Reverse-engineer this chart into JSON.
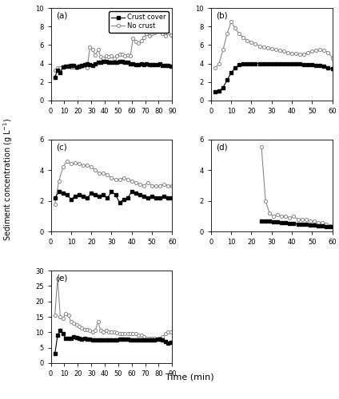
{
  "panel_a": {
    "label": "(a)",
    "xlim": [
      0,
      90
    ],
    "ylim": [
      0,
      10
    ],
    "xticks": [
      0,
      10,
      20,
      30,
      40,
      50,
      60,
      70,
      80,
      90
    ],
    "yticks": [
      0,
      2,
      4,
      6,
      8,
      10
    ],
    "crust_x": [
      3,
      5,
      7,
      9,
      11,
      13,
      15,
      17,
      19,
      21,
      23,
      25,
      27,
      29,
      31,
      33,
      35,
      37,
      39,
      41,
      43,
      45,
      47,
      49,
      51,
      53,
      55,
      57,
      59,
      61,
      63,
      65,
      67,
      69,
      71,
      73,
      75,
      77,
      79,
      81,
      83,
      85,
      87,
      89
    ],
    "crust_y": [
      2.5,
      3.3,
      3.0,
      3.6,
      3.7,
      3.7,
      3.8,
      3.8,
      3.6,
      3.7,
      3.8,
      3.9,
      4.0,
      3.9,
      3.8,
      4.0,
      4.1,
      4.1,
      4.2,
      4.2,
      4.1,
      4.1,
      4.1,
      4.1,
      4.2,
      4.2,
      4.1,
      4.1,
      4.0,
      4.0,
      3.9,
      3.9,
      4.0,
      3.9,
      4.0,
      3.9,
      3.9,
      3.9,
      3.9,
      4.0,
      3.8,
      3.8,
      3.8,
      3.7
    ],
    "nocrust_x": [
      3,
      5,
      7,
      9,
      11,
      13,
      15,
      17,
      19,
      21,
      23,
      25,
      27,
      29,
      31,
      33,
      35,
      37,
      39,
      41,
      43,
      45,
      47,
      49,
      51,
      53,
      55,
      57,
      59,
      61,
      63,
      65,
      67,
      69,
      71,
      73,
      75,
      77,
      79,
      81,
      83,
      85,
      87,
      89
    ],
    "nocrust_y": [
      3.3,
      3.5,
      3.5,
      3.6,
      3.7,
      3.8,
      3.6,
      3.6,
      3.5,
      3.6,
      3.7,
      3.8,
      3.5,
      5.8,
      5.5,
      4.9,
      5.5,
      4.7,
      4.6,
      4.8,
      4.7,
      4.8,
      4.6,
      4.8,
      5.0,
      5.0,
      4.8,
      4.9,
      4.8,
      6.7,
      6.4,
      6.2,
      6.5,
      6.8,
      7.2,
      7.0,
      7.2,
      7.3,
      7.5,
      7.5,
      7.2,
      7.0,
      7.3,
      7.1
    ]
  },
  "panel_b": {
    "label": "(b)",
    "xlim": [
      0,
      60
    ],
    "ylim": [
      0,
      10
    ],
    "xticks": [
      0,
      10,
      20,
      30,
      40,
      50,
      60
    ],
    "yticks": [
      0,
      2,
      4,
      6,
      8,
      10
    ],
    "crust_x": [
      2,
      4,
      6,
      8,
      10,
      12,
      14,
      16,
      18,
      20,
      22,
      24,
      26,
      28,
      30,
      32,
      34,
      36,
      38,
      40,
      42,
      44,
      46,
      48,
      50,
      52,
      54,
      56,
      58,
      60
    ],
    "crust_y": [
      0.9,
      1.0,
      1.4,
      2.2,
      3.0,
      3.5,
      3.9,
      4.0,
      4.0,
      4.0,
      4.0,
      4.0,
      4.0,
      4.0,
      4.0,
      4.0,
      4.0,
      4.0,
      4.0,
      4.0,
      4.0,
      4.0,
      3.9,
      3.9,
      3.9,
      3.8,
      3.8,
      3.7,
      3.5,
      3.4
    ],
    "nocrust_x": [
      2,
      4,
      6,
      8,
      10,
      12,
      14,
      16,
      18,
      20,
      22,
      24,
      26,
      28,
      30,
      32,
      34,
      36,
      38,
      40,
      42,
      44,
      46,
      48,
      50,
      52,
      54,
      56,
      58,
      60
    ],
    "nocrust_y": [
      3.5,
      4.0,
      5.5,
      7.2,
      8.5,
      7.8,
      7.2,
      6.8,
      6.5,
      6.3,
      6.1,
      5.9,
      5.8,
      5.7,
      5.6,
      5.5,
      5.4,
      5.3,
      5.2,
      5.1,
      5.1,
      5.0,
      5.0,
      5.2,
      5.3,
      5.4,
      5.5,
      5.4,
      5.2,
      4.6
    ]
  },
  "panel_c": {
    "label": "(c)",
    "xlim": [
      0,
      60
    ],
    "ylim": [
      0,
      6
    ],
    "xticks": [
      0,
      10,
      20,
      30,
      40,
      50,
      60
    ],
    "yticks": [
      0,
      2,
      4,
      6
    ],
    "crust_x": [
      2,
      4,
      6,
      8,
      10,
      12,
      14,
      16,
      18,
      20,
      22,
      24,
      26,
      28,
      30,
      32,
      34,
      36,
      38,
      40,
      42,
      44,
      46,
      48,
      50,
      52,
      54,
      56,
      58,
      60
    ],
    "crust_y": [
      2.2,
      2.6,
      2.5,
      2.4,
      2.1,
      2.3,
      2.4,
      2.3,
      2.2,
      2.5,
      2.4,
      2.3,
      2.4,
      2.2,
      2.6,
      2.4,
      1.9,
      2.1,
      2.2,
      2.6,
      2.5,
      2.4,
      2.3,
      2.2,
      2.3,
      2.2,
      2.2,
      2.3,
      2.2,
      2.2
    ],
    "nocrust_x": [
      2,
      4,
      6,
      8,
      10,
      12,
      14,
      16,
      18,
      20,
      22,
      24,
      26,
      28,
      30,
      32,
      34,
      36,
      38,
      40,
      42,
      44,
      46,
      48,
      50,
      52,
      54,
      56,
      58,
      60
    ],
    "nocrust_y": [
      1.8,
      3.3,
      4.2,
      4.6,
      4.4,
      4.5,
      4.4,
      4.3,
      4.3,
      4.2,
      4.0,
      3.8,
      3.8,
      3.7,
      3.5,
      3.4,
      3.4,
      3.5,
      3.4,
      3.3,
      3.2,
      3.1,
      3.0,
      3.2,
      3.0,
      3.0,
      3.0,
      3.1,
      3.0,
      3.0
    ]
  },
  "panel_d": {
    "label": "(d)",
    "xlim": [
      0,
      60
    ],
    "ylim": [
      0,
      6
    ],
    "xticks": [
      0,
      10,
      20,
      30,
      40,
      50,
      60
    ],
    "yticks": [
      0,
      2,
      4,
      6
    ],
    "crust_x": [
      25,
      27,
      29,
      31,
      33,
      35,
      37,
      39,
      41,
      43,
      45,
      47,
      49,
      51,
      53,
      55,
      57,
      59
    ],
    "crust_y": [
      0.7,
      0.7,
      0.7,
      0.65,
      0.65,
      0.6,
      0.6,
      0.55,
      0.55,
      0.5,
      0.5,
      0.5,
      0.45,
      0.45,
      0.4,
      0.4,
      0.35,
      0.35
    ],
    "nocrust_x": [
      25,
      27,
      29,
      31,
      33,
      35,
      37,
      39,
      41,
      43,
      45,
      47,
      49,
      51,
      53,
      55,
      57,
      59
    ],
    "nocrust_y": [
      5.5,
      2.0,
      1.2,
      1.0,
      1.1,
      1.0,
      1.0,
      0.9,
      1.0,
      0.8,
      0.8,
      0.8,
      0.7,
      0.7,
      0.6,
      0.6,
      0.5,
      0.4
    ]
  },
  "panel_e": {
    "label": "(e)",
    "xlim": [
      0,
      90
    ],
    "ylim": [
      0,
      30
    ],
    "xticks": [
      0,
      10,
      20,
      30,
      40,
      50,
      60,
      70,
      80,
      90
    ],
    "yticks": [
      0,
      5,
      10,
      15,
      20,
      25,
      30
    ],
    "crust_x": [
      3,
      5,
      7,
      9,
      11,
      13,
      15,
      17,
      19,
      21,
      23,
      25,
      27,
      29,
      31,
      33,
      35,
      37,
      39,
      41,
      43,
      45,
      47,
      49,
      51,
      53,
      55,
      57,
      59,
      61,
      63,
      65,
      67,
      69,
      71,
      73,
      75,
      77,
      79,
      81,
      83,
      85,
      87,
      89
    ],
    "crust_y": [
      3.0,
      9.0,
      10.5,
      9.5,
      8.0,
      8.0,
      8.0,
      8.5,
      8.2,
      8.0,
      7.8,
      8.0,
      7.8,
      7.8,
      7.5,
      7.5,
      7.5,
      7.5,
      7.5,
      7.5,
      7.5,
      7.5,
      7.5,
      7.5,
      7.8,
      7.8,
      7.8,
      7.8,
      7.5,
      7.5,
      7.5,
      7.5,
      7.5,
      7.5,
      7.5,
      7.5,
      7.5,
      7.5,
      7.8,
      7.8,
      7.5,
      7.0,
      6.5,
      6.8
    ],
    "nocrust_x": [
      3,
      5,
      7,
      9,
      11,
      13,
      15,
      17,
      19,
      21,
      23,
      25,
      27,
      29,
      31,
      33,
      35,
      37,
      39,
      41,
      43,
      45,
      47,
      49,
      51,
      53,
      55,
      57,
      59,
      61,
      63,
      65,
      67,
      69,
      71,
      73,
      75,
      77,
      79,
      81,
      83,
      85,
      87,
      89
    ],
    "nocrust_y": [
      15.5,
      27.5,
      15.0,
      14.5,
      16.0,
      15.5,
      13.5,
      13.0,
      12.5,
      12.0,
      11.5,
      11.0,
      11.0,
      10.5,
      10.0,
      10.5,
      13.5,
      10.5,
      10.0,
      10.5,
      10.0,
      10.0,
      10.0,
      9.8,
      9.5,
      9.5,
      9.5,
      9.5,
      9.5,
      9.5,
      9.5,
      9.0,
      9.0,
      8.5,
      8.0,
      8.0,
      8.0,
      8.0,
      7.8,
      8.0,
      8.5,
      9.5,
      10.0,
      10.0
    ]
  },
  "crust_color": "#000000",
  "nocrust_color": "#888888",
  "crust_marker": "s",
  "nocrust_marker": "o",
  "legend_labels": [
    "Crust cover",
    "No crust"
  ],
  "xlabel": "Time (min)",
  "ylabel": "Sediment concentration (g L$^{-1}$)",
  "markersize": 3,
  "linewidth": 0.8
}
